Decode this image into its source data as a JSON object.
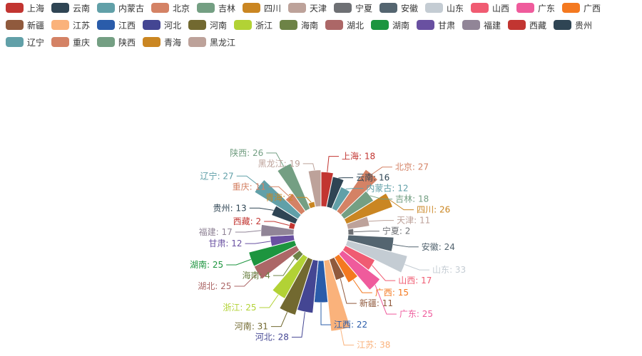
{
  "chart_data": {
    "type": "pie",
    "subtype": "rose",
    "legend_placement": "top-left",
    "items": [
      {
        "name": "上海",
        "value": 18,
        "color": "#c23531"
      },
      {
        "name": "云南",
        "value": 16,
        "color": "#2f4554"
      },
      {
        "name": "内蒙古",
        "value": 12,
        "color": "#61a0a8"
      },
      {
        "name": "北京",
        "value": 27,
        "color": "#d48265"
      },
      {
        "name": "吉林",
        "value": 18,
        "color": "#749f83"
      },
      {
        "name": "四川",
        "value": 26,
        "color": "#ca8622"
      },
      {
        "name": "天津",
        "value": 11,
        "color": "#bda29a"
      },
      {
        "name": "宁夏",
        "value": 2,
        "color": "#6e7074"
      },
      {
        "name": "安徽",
        "value": 24,
        "color": "#546570"
      },
      {
        "name": "山东",
        "value": 33,
        "color": "#c4ccd3"
      },
      {
        "name": "山西",
        "value": 17,
        "color": "#f05b72"
      },
      {
        "name": "广东",
        "value": 25,
        "color": "#ef5b9c"
      },
      {
        "name": "广西",
        "value": 15,
        "color": "#f47920"
      },
      {
        "name": "新疆",
        "value": 11,
        "color": "#905a3d"
      },
      {
        "name": "江苏",
        "value": 38,
        "color": "#fab27b"
      },
      {
        "name": "江西",
        "value": 22,
        "color": "#2a5caa"
      },
      {
        "name": "河北",
        "value": 28,
        "color": "#444693"
      },
      {
        "name": "河南",
        "value": 31,
        "color": "#726930"
      },
      {
        "name": "浙江",
        "value": 25,
        "color": "#b2d235"
      },
      {
        "name": "海南",
        "value": 4,
        "color": "#6d8346"
      },
      {
        "name": "湖北",
        "value": 25,
        "color": "#ac6767"
      },
      {
        "name": "湖南",
        "value": 25,
        "color": "#1d953f"
      },
      {
        "name": "甘肃",
        "value": 12,
        "color": "#6950a1"
      },
      {
        "name": "福建",
        "value": 17,
        "color": "#918597"
      },
      {
        "name": "西藏",
        "value": 2,
        "color": "#c23531"
      },
      {
        "name": "贵州",
        "value": 13,
        "color": "#2f4554"
      },
      {
        "name": "辽宁",
        "value": 27,
        "color": "#61a0a8"
      },
      {
        "name": "重庆",
        "value": 11,
        "color": "#d48265"
      },
      {
        "name": "陕西",
        "value": 26,
        "color": "#749f83"
      },
      {
        "name": "青海",
        "value": 2,
        "color": "#ca8622"
      },
      {
        "name": "黑龙江",
        "value": 19,
        "color": "#bda29a"
      }
    ]
  }
}
